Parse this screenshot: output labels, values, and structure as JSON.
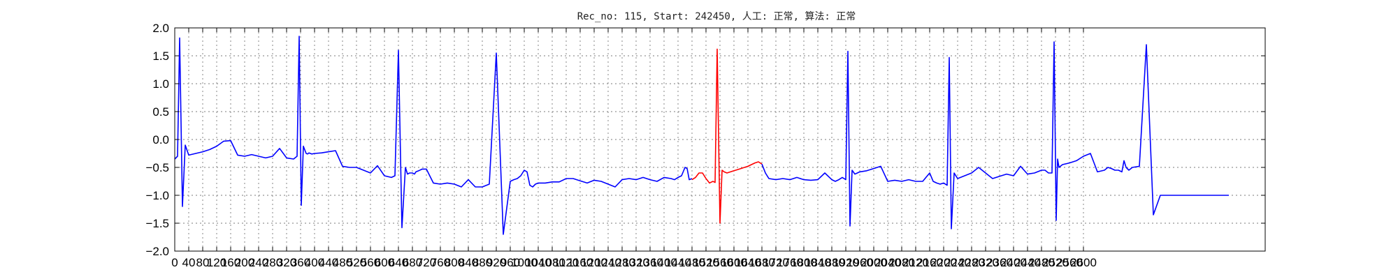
{
  "chart_data": {
    "type": "line",
    "title": "Rec_no: 115, Start: 242450, 人工: 正常, 算法: 正常",
    "xlabel": "",
    "ylabel": "",
    "xlim": [
      0,
      3120
    ],
    "ylim": [
      -2.0,
      2.0
    ],
    "yticks": [
      2.0,
      1.5,
      1.0,
      0.5,
      0.0,
      -0.5,
      -1.0,
      -1.5,
      -2.0
    ],
    "ytick_labels": [
      "2.0",
      "1.5",
      "1.0",
      "0.5",
      "0.0",
      "−0.5",
      "−1.0",
      "−1.5",
      "−2.0"
    ],
    "xticks": [
      0,
      40,
      80,
      120,
      160,
      200,
      240,
      280,
      320,
      360,
      400,
      440,
      480,
      520,
      560,
      600,
      640,
      680,
      720,
      760,
      800,
      840,
      880,
      920,
      960,
      1000,
      1040,
      1080,
      1120,
      1160,
      1200,
      1240,
      1280,
      1320,
      1360,
      1400,
      1440,
      1480,
      1520,
      1560,
      1600,
      1640,
      1680,
      1720,
      1760,
      1800,
      1840,
      1880,
      1920,
      1960,
      2000,
      2040,
      2080,
      2120,
      2160,
      2200,
      2240,
      2280,
      2320,
      2360,
      2400,
      2440,
      2480,
      2520,
      2560,
      2600
    ],
    "xtick_labels": [
      "0",
      "40",
      "80",
      "120",
      "160",
      "200",
      "240",
      "280",
      "320",
      "360",
      "400",
      "440",
      "480",
      "520",
      "560",
      "600",
      "640",
      "680",
      "720",
      "760",
      "800",
      "840",
      "880",
      "920",
      "960",
      "1000",
      "1040",
      "1080",
      "1120",
      "1160",
      "1200",
      "1240",
      "1280",
      "1320",
      "1360",
      "1400",
      "1440",
      "1480",
      "1520",
      "1560",
      "1600",
      "1640",
      "1680",
      "1720",
      "1760",
      "1800",
      "1840",
      "1880",
      "1920",
      "1960",
      "2000",
      "2040",
      "2080",
      "2120",
      "2160",
      "2200",
      "2240",
      "2280",
      "2320",
      "2360",
      "2400",
      "2440",
      "2480",
      "2520",
      "2560",
      "2600"
    ],
    "grid": true,
    "legend": "none",
    "series": [
      {
        "color": "#0000ff",
        "x": [
          0,
          8,
          14,
          22,
          30,
          40,
          60,
          80,
          100,
          120,
          140,
          160,
          180,
          200,
          220,
          240,
          260,
          280,
          300,
          320,
          340,
          350,
          356,
          362,
          368,
          376,
          380,
          384,
          392,
          400,
          420,
          440,
          460,
          480,
          500,
          520,
          540,
          560,
          580,
          600,
          620,
          630,
          640,
          650,
          660,
          666,
          672,
          680,
          686,
          690,
          698,
          708,
          720,
          740,
          760,
          780,
          800,
          820,
          840,
          860,
          880,
          900,
          920,
          940,
          960,
          970,
          980,
          990,
          1000,
          1008,
          1016,
          1024,
          1032,
          1040,
          1060,
          1080,
          1100,
          1120,
          1140,
          1160,
          1180,
          1200,
          1220,
          1240,
          1260,
          1280,
          1300,
          1320,
          1340,
          1360,
          1380,
          1400,
          1420,
          1430,
          1440,
          1450,
          1460,
          1466,
          1472,
          1480
        ],
        "y": [
          -0.35,
          -0.3,
          1.82,
          -1.2,
          -0.1,
          -0.28,
          -0.25,
          -0.22,
          -0.18,
          -0.12,
          -0.03,
          -0.02,
          -0.28,
          -0.3,
          -0.27,
          -0.3,
          -0.33,
          -0.3,
          -0.16,
          -0.33,
          -0.35,
          -0.3,
          1.85,
          -1.18,
          -0.12,
          -0.25,
          -0.26,
          -0.24,
          -0.26,
          -0.25,
          -0.24,
          -0.22,
          -0.2,
          -0.48,
          -0.5,
          -0.5,
          -0.55,
          -0.6,
          -0.47,
          -0.65,
          -0.68,
          -0.65,
          1.6,
          -1.58,
          -0.5,
          -0.62,
          -0.6,
          -0.6,
          -0.62,
          -0.58,
          -0.56,
          -0.53,
          -0.53,
          -0.78,
          -0.8,
          -0.78,
          -0.8,
          -0.85,
          -0.72,
          -0.85,
          -0.85,
          -0.8,
          1.55,
          -1.7,
          -0.75,
          -0.72,
          -0.7,
          -0.65,
          -0.55,
          -0.58,
          -0.82,
          -0.85,
          -0.8,
          -0.78,
          -0.78,
          -0.76,
          -0.76,
          -0.7,
          -0.7,
          -0.74,
          -0.78,
          -0.73,
          -0.75,
          -0.8,
          -0.85,
          -0.72,
          -0.7,
          -0.72,
          -0.68,
          -0.72,
          -0.75,
          -0.68,
          -0.7,
          -0.72,
          -0.68,
          -0.65,
          -0.5,
          -0.52,
          -0.72,
          -0.7
        ]
      },
      {
        "color": "#ff0000",
        "x": [
          1480,
          1490,
          1500,
          1510,
          1520,
          1530,
          1540,
          1546,
          1552,
          1560,
          1566,
          1572,
          1580,
          1590,
          1600,
          1610,
          1620,
          1630,
          1640,
          1650,
          1660,
          1670,
          1680
        ],
        "y": [
          -0.72,
          -0.68,
          -0.6,
          -0.6,
          -0.7,
          -0.78,
          -0.75,
          -0.77,
          1.62,
          -1.5,
          -0.55,
          -0.58,
          -0.6,
          -0.58,
          -0.56,
          -0.54,
          -0.52,
          -0.5,
          -0.48,
          -0.45,
          -0.42,
          -0.4,
          -0.44
        ]
      },
      {
        "color": "#0000ff",
        "x": [
          1680,
          1690,
          1700,
          1720,
          1740,
          1760,
          1780,
          1800,
          1820,
          1840,
          1860,
          1880,
          1890,
          1900,
          1910,
          1920,
          1926,
          1932,
          1938,
          1946,
          1960,
          1980,
          2000,
          2020,
          2040,
          2060,
          2080,
          2100,
          2120,
          2140,
          2160,
          2170,
          2180,
          2190,
          2200,
          2210,
          2216,
          2222,
          2230,
          2240,
          2260,
          2280,
          2300,
          2320,
          2340,
          2360,
          2380,
          2400,
          2420,
          2440,
          2460,
          2480,
          2490,
          2500,
          2510,
          2516,
          2522,
          2526,
          2530,
          2540,
          2560,
          2580,
          2600,
          2620,
          2640,
          2660,
          2670,
          2680,
          2690,
          2700,
          2710,
          2716,
          2722,
          2730,
          2740,
          2760,
          2780,
          2800,
          2820,
          2840,
          2860,
          2880,
          2900,
          2920,
          2940,
          2960,
          2970,
          2980,
          2990,
          3000,
          3008,
          3012,
          3016
        ],
        "y": [
          -0.44,
          -0.6,
          -0.7,
          -0.72,
          -0.7,
          -0.72,
          -0.68,
          -0.72,
          -0.73,
          -0.72,
          -0.6,
          -0.72,
          -0.75,
          -0.72,
          -0.68,
          -0.72,
          1.58,
          -1.55,
          -0.55,
          -0.62,
          -0.58,
          -0.56,
          -0.52,
          -0.48,
          -0.75,
          -0.73,
          -0.75,
          -0.72,
          -0.75,
          -0.75,
          -0.6,
          -0.75,
          -0.78,
          -0.8,
          -0.78,
          -0.82,
          1.47,
          -1.6,
          -0.6,
          -0.7,
          -0.65,
          -0.6,
          -0.5,
          -0.6,
          -0.7,
          -0.66,
          -0.62,
          -0.65,
          -0.48,
          -0.62,
          -0.6,
          -0.55,
          -0.55,
          -0.6,
          -0.6,
          1.75,
          -1.45,
          -0.35,
          -0.5,
          -0.45,
          -0.42,
          -0.38,
          -0.3,
          -0.25,
          -0.58,
          -0.55,
          -0.5,
          -0.52,
          -0.55,
          -0.55,
          -0.58,
          -0.38,
          -0.5,
          -0.55,
          -0.5,
          -0.48,
          1.7,
          -1.35,
          -1.0,
          -1.0,
          -1.0,
          -1.0,
          -1.0,
          -1.0,
          -1.0,
          -1.0,
          -1.0,
          -1.0,
          -1.0,
          -1.0,
          -1.0,
          -1.0,
          -1.0
        ]
      }
    ]
  }
}
